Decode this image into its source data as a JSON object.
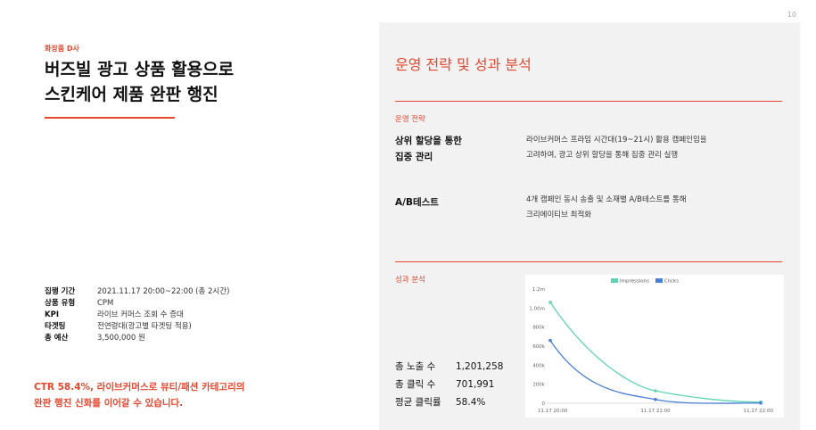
{
  "page_number": "10",
  "left": {
    "client": "화장품 D사",
    "title_line1": "버즈빌 광고 상품 활용으로",
    "title_line2": "스킨케어 제품 완판 행진",
    "info": [
      {
        "key": "집행 기간",
        "value": "2021.11.17 20:00~22:00 (총 2시간)"
      },
      {
        "key": "상품 유형",
        "value": "CPM"
      },
      {
        "key": "KPI",
        "value": "라이브 커머스 조회 수 증대"
      },
      {
        "key": "타겟팅",
        "value": "전연령대(광고별 타겟팅 적용)"
      },
      {
        "key": "총 예산",
        "value": "3,500,000 원"
      }
    ],
    "summary_line1": "CTR 58.4%, 라이브커머스로 뷰티/패션 카테고리의",
    "summary_line2": "완판 행진 신화를 이어갈 수 있습니다."
  },
  "right": {
    "title": "운영 전략 및 성과 분석",
    "strategy_label": "운영 전략",
    "strategies": [
      {
        "key_line1": "상위 할당을 통한",
        "key_line2": "집중 관리",
        "val_line1": "라이브커머스 프라임 시간대(19~21시) 활용 캠페인임을",
        "val_line2": "고려하여, 광고 상위 할당을 통해 집중 관리 실행"
      },
      {
        "key_line1": "A/B테스트",
        "key_line2": "",
        "val_line1": "4개 캠페인 동시 송출 및 소재별 A/B테스트를 통해",
        "val_line2": "크리에이티브 최적화"
      }
    ],
    "performance_label": "성과 분석",
    "stats": [
      {
        "label": "총 노출 수",
        "value": "1,201,258"
      },
      {
        "label": "총 클릭 수",
        "value": "701,991"
      },
      {
        "label": "평균 클릭률",
        "value": "58.4%"
      }
    ]
  },
  "chart_data": {
    "type": "line",
    "x": [
      "11.17 20:00",
      "11.17 21:00",
      "11.17 22:00"
    ],
    "series": [
      {
        "name": "Impressions",
        "color": "#5fd4b2",
        "values": [
          1060000,
          130000,
          12000
        ]
      },
      {
        "name": "Clicks",
        "color": "#4a7fd8",
        "values": [
          660000,
          40000,
          2000
        ]
      }
    ],
    "yticks": [
      "0",
      "200k",
      "400k",
      "600k",
      "800k",
      "1.00m",
      "1.2m"
    ],
    "ylim": [
      0,
      1200000
    ],
    "legend_position": "top",
    "grid": false
  }
}
